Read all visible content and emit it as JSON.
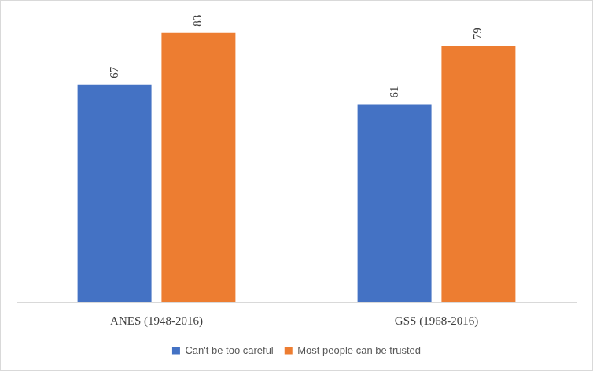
{
  "chart_data": {
    "type": "bar",
    "categories": [
      "ANES (1948-2016)",
      "GSS (1968-2016)"
    ],
    "series": [
      {
        "name": "Can't be too careful",
        "color": "#4472c4",
        "values": [
          67,
          61
        ]
      },
      {
        "name": "Most people can be trusted",
        "color": "#ed7d31",
        "values": [
          83,
          79
        ]
      }
    ],
    "ylim": [
      0,
      90
    ],
    "tick_labels": "x",
    "grid": false,
    "legend": "bottom",
    "data_labels": true
  }
}
